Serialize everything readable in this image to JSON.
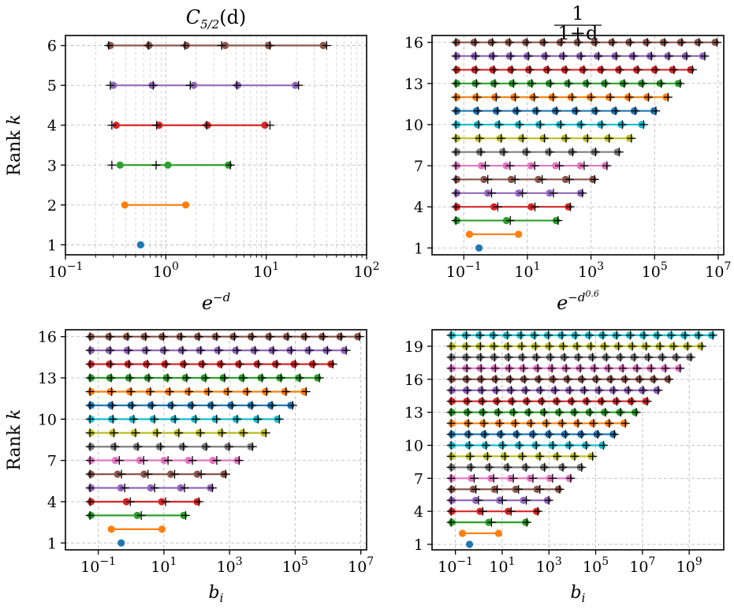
{
  "chart_data": [
    {
      "type": "scatter",
      "title": "C_{5/2}(d)",
      "xlabel": "",
      "ylabel": "Rank k",
      "xscale": "log",
      "xlim": [
        0.1,
        100
      ],
      "ylim": [
        0.75,
        6.25
      ],
      "grid": "major+minor",
      "xticks": [
        {
          "v": 0.1,
          "b": "10",
          "e": "−1"
        },
        {
          "v": 1,
          "b": "10",
          "e": "0"
        },
        {
          "v": 10,
          "b": "10",
          "e": "1"
        },
        {
          "v": 100,
          "b": "10",
          "e": "2"
        }
      ],
      "yticks": [
        "1",
        "2",
        "3",
        "4",
        "5",
        "6"
      ],
      "kmax": 6,
      "dots": {
        "1": [
          0.56
        ],
        "2": [
          0.39,
          1.58
        ],
        "3": [
          0.35,
          1.05,
          4.2
        ],
        "4": [
          0.32,
          0.86,
          2.6,
          9.7
        ],
        "5": [
          0.3,
          0.73,
          1.9,
          5.2,
          19.5
        ],
        "6": [
          0.28,
          0.68,
          1.6,
          3.9,
          10.5,
          37
        ]
      },
      "crosses": {
        "3": [
          0.29,
          0.8,
          4.4
        ],
        "4": [
          0.29,
          0.81,
          2.55,
          10.9
        ],
        "5": [
          0.28,
          0.75,
          1.75,
          5.1,
          21
        ],
        "6": [
          0.27,
          0.67,
          1.55,
          3.6,
          10.9,
          40
        ]
      }
    },
    {
      "type": "scatter",
      "title": "1/(1+d)",
      "xlabel": "",
      "ylabel": "",
      "xscale": "log",
      "xlim": [
        0.01,
        15000000
      ],
      "ylim": [
        0.5,
        16.5
      ],
      "grid": "major",
      "xticks": [
        {
          "v": 0.1,
          "b": "10",
          "e": "−1"
        },
        {
          "v": 10,
          "b": "10",
          "e": "1"
        },
        {
          "v": 1000,
          "b": "10",
          "e": "3"
        },
        {
          "v": 100000,
          "b": "10",
          "e": "5"
        },
        {
          "v": 10000000,
          "b": "10",
          "e": "7"
        }
      ],
      "yticks": [
        "1",
        "4",
        "7",
        "10",
        "13",
        "16"
      ],
      "kmax": 16,
      "rmin": 0.06,
      "rmax": 80,
      "rmaxTop": 8000000,
      "dot1": 0.3,
      "dot2a": 0.15
    },
    {
      "type": "scatter",
      "title": "e^{−d}",
      "xlabel": "b_i",
      "ylabel": "Rank k",
      "xscale": "log",
      "xlim": [
        0.01,
        15000000
      ],
      "ylim": [
        0.5,
        16.5
      ],
      "grid": "major",
      "xticks": [
        {
          "v": 0.1,
          "b": "10",
          "e": "−1"
        },
        {
          "v": 10,
          "b": "10",
          "e": "1"
        },
        {
          "v": 1000,
          "b": "10",
          "e": "3"
        },
        {
          "v": 100000,
          "b": "10",
          "e": "5"
        },
        {
          "v": 10000000,
          "b": "10",
          "e": "7"
        }
      ],
      "yticks": [
        "1",
        "4",
        "7",
        "10",
        "13",
        "16"
      ],
      "kmax": 16,
      "rmin": 0.06,
      "rmax": 40,
      "rmaxTop": 8000000,
      "dot1": 0.5,
      "dot2a": 0.25
    },
    {
      "type": "scatter",
      "title": "e^{−d^{0.6}}",
      "xlabel": "b_i",
      "ylabel": "",
      "xscale": "log",
      "xlim": [
        0.01,
        30000000000
      ],
      "ylim": [
        0.5,
        20.5
      ],
      "grid": "major",
      "xticks": [
        {
          "v": 0.1,
          "b": "10",
          "e": "−1"
        },
        {
          "v": 10,
          "b": "10",
          "e": "1"
        },
        {
          "v": 1000,
          "b": "10",
          "e": "3"
        },
        {
          "v": 100000,
          "b": "10",
          "e": "5"
        },
        {
          "v": 10000000,
          "b": "10",
          "e": "7"
        },
        {
          "v": 1000000000,
          "b": "10",
          "e": "9"
        }
      ],
      "yticks": [
        "1",
        "4",
        "7",
        "10",
        "13",
        "16",
        "19"
      ],
      "kmax": 20,
      "rmin": 0.07,
      "rmax": 100,
      "rmaxTop": 9000000000,
      "dot1": 0.4,
      "dot2a": 0.2
    }
  ],
  "colors": [
    "#1f77b4",
    "#ff7f0e",
    "#2ca02c",
    "#d62728",
    "#9467bd",
    "#8c564b",
    "#e377c2",
    "#7f7f7f",
    "#bcbd22",
    "#17becf"
  ]
}
